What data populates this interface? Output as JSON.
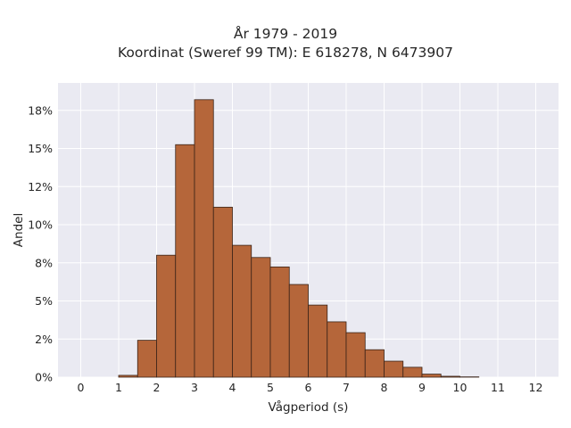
{
  "chart_data": {
    "type": "bar",
    "title": "År 1979 - 2019",
    "subtitle": "Koordinat (Sweref 99 TM): E 618278, N 6473907",
    "xlabel": "Vågperiod (s)",
    "ylabel": "Andel",
    "xlim": [
      -0.6,
      12.6
    ],
    "ylim": [
      0,
      0.193
    ],
    "x_ticks": [
      0,
      1,
      2,
      3,
      4,
      5,
      6,
      7,
      8,
      9,
      10,
      11,
      12
    ],
    "y_ticks": [
      {
        "value": 0.0,
        "label": "0%"
      },
      {
        "value": 0.025,
        "label": "2%"
      },
      {
        "value": 0.05,
        "label": "5%"
      },
      {
        "value": 0.075,
        "label": "8%"
      },
      {
        "value": 0.1,
        "label": "10%"
      },
      {
        "value": 0.125,
        "label": "12%"
      },
      {
        "value": 0.15,
        "label": "15%"
      },
      {
        "value": 0.175,
        "label": "18%"
      }
    ],
    "grid": true,
    "bin_width": 0.5,
    "bins": [
      {
        "x0": 1.0,
        "value": 0.0012
      },
      {
        "x0": 1.5,
        "value": 0.0242
      },
      {
        "x0": 2.0,
        "value": 0.08
      },
      {
        "x0": 2.5,
        "value": 0.1525
      },
      {
        "x0": 3.0,
        "value": 0.182
      },
      {
        "x0": 3.5,
        "value": 0.1115
      },
      {
        "x0": 4.0,
        "value": 0.0865
      },
      {
        "x0": 4.5,
        "value": 0.0785
      },
      {
        "x0": 5.0,
        "value": 0.0723
      },
      {
        "x0": 5.5,
        "value": 0.0608
      },
      {
        "x0": 6.0,
        "value": 0.0473
      },
      {
        "x0": 6.5,
        "value": 0.0363
      },
      {
        "x0": 7.0,
        "value": 0.0292
      },
      {
        "x0": 7.5,
        "value": 0.018
      },
      {
        "x0": 8.0,
        "value": 0.0105
      },
      {
        "x0": 8.5,
        "value": 0.0065
      },
      {
        "x0": 9.0,
        "value": 0.002
      },
      {
        "x0": 9.5,
        "value": 0.0006
      },
      {
        "x0": 10.0,
        "value": 0.0002
      }
    ],
    "colors": {
      "bar_fill": "#b5663a",
      "bar_edge": "#3a2418",
      "plot_background": "#eaeaf2",
      "grid": "#ffffff"
    }
  }
}
